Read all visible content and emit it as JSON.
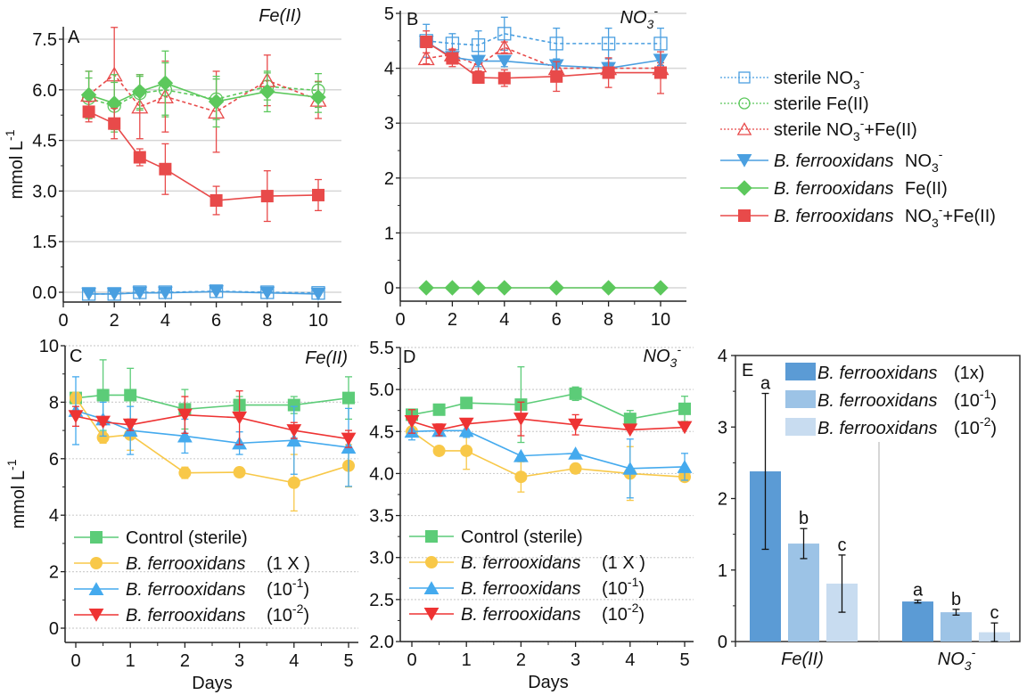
{
  "chart_data": [
    {
      "panel": "A",
      "type": "line",
      "title": "Fe(II)",
      "xlabel": "",
      "ylabel": "mmol L-1",
      "xlim": [
        0,
        11
      ],
      "ylim": [
        -0.3,
        8.0
      ],
      "xticks": [
        0,
        2,
        4,
        6,
        8,
        10
      ],
      "yticks": [
        "0.0",
        "1.5",
        "3.0",
        "4.5",
        "6.0",
        "7.5"
      ],
      "ytick_values": [
        0,
        1.5,
        3.0,
        4.5,
        6.0,
        7.5
      ],
      "grid": true,
      "x": [
        1,
        2,
        3,
        4,
        6,
        8,
        10
      ],
      "series": [
        {
          "name": "sterile NO3-",
          "style": "dotted-open-square",
          "color": "#4a9fe0",
          "values": [
            -0.05,
            -0.05,
            0.0,
            0.0,
            0.03,
            0.0,
            -0.02
          ],
          "err": [
            0.05,
            0.05,
            0.05,
            0.05,
            0.05,
            0.05,
            0.05
          ]
        },
        {
          "name": "sterile Fe(II)",
          "style": "dotted-open-circle",
          "color": "#5cc85c",
          "values": [
            5.75,
            5.52,
            5.9,
            6.0,
            5.72,
            6.1,
            5.98
          ],
          "err": [
            0.6,
            0.7,
            0.5,
            0.8,
            0.6,
            0.4,
            0.5
          ]
        },
        {
          "name": "sterile NO3-+Fe(II)",
          "style": "dotted-open-triangle",
          "color": "#e84a4a",
          "values": [
            5.85,
            6.45,
            5.5,
            5.8,
            5.35,
            6.28,
            5.7
          ],
          "err": [
            0.7,
            1.4,
            0.95,
            1.05,
            1.2,
            0.75,
            0.55
          ]
        },
        {
          "name": "B. ferrooxidans NO3-",
          "style": "solid-down-triangle",
          "color": "#4a9fe0",
          "values": [
            -0.05,
            -0.05,
            -0.02,
            -0.02,
            0.02,
            -0.02,
            -0.05
          ],
          "err": [
            0.05,
            0.05,
            0.05,
            0.05,
            0.05,
            0.05,
            0.05
          ]
        },
        {
          "name": "B. ferrooxidans Fe(II)",
          "style": "solid-diamond",
          "color": "#5cc85c",
          "values": [
            5.85,
            5.6,
            5.95,
            6.2,
            5.65,
            5.95,
            5.78
          ],
          "err": [
            0.7,
            0.85,
            0.5,
            0.95,
            0.75,
            0.6,
            0.45
          ]
        },
        {
          "name": "B. ferrooxidans NO3-+Fe(II)",
          "style": "solid-square",
          "color": "#e84a4a",
          "values": [
            5.35,
            5.0,
            4.0,
            3.65,
            2.72,
            2.85,
            2.88
          ],
          "err": [
            0.3,
            0.45,
            0.25,
            0.75,
            0.42,
            0.75,
            0.46
          ]
        }
      ]
    },
    {
      "panel": "B",
      "type": "line",
      "title": "NO3-",
      "xlabel": "",
      "ylabel": "",
      "xlim": [
        0,
        11
      ],
      "ylim": [
        -0.2,
        5.0
      ],
      "xticks": [
        0,
        2,
        4,
        6,
        8,
        10
      ],
      "yticks": [
        "0",
        "1",
        "2",
        "3",
        "4",
        "5"
      ],
      "ytick_values": [
        0,
        1,
        2,
        3,
        4,
        5
      ],
      "grid": true,
      "x": [
        1,
        2,
        3,
        4,
        6,
        8,
        10
      ],
      "series": [
        {
          "name": "sterile NO3-",
          "style": "dotted-open-square",
          "color": "#4a9fe0",
          "values": [
            4.5,
            4.45,
            4.42,
            4.63,
            4.45,
            4.45,
            4.45
          ],
          "err": [
            0.3,
            0.18,
            0.26,
            0.3,
            0.28,
            0.28,
            0.28
          ]
        },
        {
          "name": "sterile NO3-+Fe(II)",
          "style": "dotted-open-triangle",
          "color": "#e84a4a",
          "values": [
            4.18,
            4.25,
            4.05,
            4.38,
            4.0,
            4.0,
            4.0
          ],
          "err": [
            0.1,
            0.1,
            0.1,
            0.1,
            0.1,
            0.1,
            0.1
          ]
        },
        {
          "name": "B. ferrooxidans NO3-",
          "style": "solid-down-triangle",
          "color": "#4a9fe0",
          "values": [
            4.48,
            4.2,
            4.13,
            4.13,
            4.05,
            4.0,
            4.15
          ],
          "err": [
            0.1,
            0.1,
            0.1,
            0.1,
            0.1,
            0.1,
            0.1
          ]
        },
        {
          "name": "B. ferrooxidans Fe(II)",
          "style": "solid-diamond",
          "color": "#5cc85c",
          "values": [
            0,
            0,
            0,
            0,
            0,
            0,
            0
          ],
          "err": [
            0,
            0,
            0,
            0,
            0,
            0,
            0
          ]
        },
        {
          "name": "B. ferrooxidans NO3-+Fe(II)",
          "style": "solid-square",
          "color": "#e84a4a",
          "values": [
            4.48,
            4.18,
            3.83,
            3.82,
            3.85,
            3.92,
            3.92
          ],
          "err": [
            0.2,
            0.15,
            0.08,
            0.15,
            0.27,
            0.27,
            0.38
          ]
        }
      ]
    },
    {
      "panel": "legend-AB",
      "type": "legend",
      "entries": [
        {
          "species": "",
          "label": "sterile NO3-",
          "style": "dotted-open-square",
          "color": "#4a9fe0"
        },
        {
          "species": "",
          "label": "sterile Fe(II)",
          "style": "dotted-open-circle",
          "color": "#5cc85c"
        },
        {
          "species": "",
          "label": "sterile NO3-+Fe(II)",
          "style": "dotted-open-triangle",
          "color": "#e84a4a"
        },
        {
          "species": "B. ferrooxidans",
          "label": "NO3-",
          "style": "solid-down-triangle",
          "color": "#4a9fe0"
        },
        {
          "species": "B. ferrooxidans",
          "label": "Fe(II)",
          "style": "solid-diamond",
          "color": "#5cc85c"
        },
        {
          "species": "B. ferrooxidans",
          "label": "NO3-+Fe(II)",
          "style": "solid-square",
          "color": "#e84a4a"
        }
      ]
    },
    {
      "panel": "C",
      "type": "line",
      "title": "Fe(II)",
      "xlabel": "Days",
      "ylabel": "mmol L-1",
      "xlim": [
        -0.15,
        5.15
      ],
      "ylim": [
        -0.5,
        10
      ],
      "xticks": [
        0,
        1,
        2,
        3,
        4,
        5
      ],
      "yticks": [
        "0",
        "2",
        "4",
        "6",
        "8",
        "10"
      ],
      "ytick_values": [
        0,
        2,
        4,
        6,
        8,
        10
      ],
      "grid": true,
      "x": [
        0,
        0.5,
        1,
        2,
        3,
        4,
        5
      ],
      "series": [
        {
          "name": "Control (sterile)",
          "style": "solid-square",
          "color": "#5ccc78",
          "values": [
            8.15,
            8.25,
            8.25,
            7.75,
            7.9,
            7.9,
            8.15
          ],
          "err": [
            0.2,
            1.25,
            0.95,
            0.7,
            0.3,
            0.3,
            0.75
          ]
        },
        {
          "name": "B. ferrooxidans (1 X )",
          "style": "solid-circle",
          "color": "#f8c848",
          "values": [
            8.15,
            6.75,
            6.85,
            5.5,
            5.52,
            5.15,
            5.75
          ],
          "err": [
            0.2,
            0.2,
            0.55,
            0.2,
            0.1,
            1.0,
            0.75
          ]
        },
        {
          "name": "B. ferrooxidans (10-1)",
          "style": "solid-up-triangle",
          "color": "#44aaee",
          "values": [
            7.7,
            7.4,
            7.0,
            6.8,
            6.55,
            6.65,
            6.4
          ],
          "err": [
            1.2,
            0.6,
            0.85,
            0.6,
            0.4,
            1.2,
            1.38
          ]
        },
        {
          "name": "B. ferrooxidans (10-2)",
          "style": "solid-down-triangle",
          "color": "#ee3333",
          "values": [
            7.5,
            7.3,
            7.2,
            7.55,
            7.45,
            7.0,
            6.7
          ],
          "err": [
            0.35,
            0.1,
            0.2,
            0.65,
            0.95,
            0.28,
            0.3
          ]
        }
      ]
    },
    {
      "panel": "D",
      "type": "line",
      "title": "NO3-",
      "xlabel": "Days",
      "ylabel": "",
      "xlim": [
        -0.15,
        5.15
      ],
      "ylim": [
        2.0,
        5.5
      ],
      "xticks": [
        0,
        1,
        2,
        3,
        4,
        5
      ],
      "yticks": [
        "2.0",
        "2.5",
        "3.0",
        "3.5",
        "4.0",
        "4.5",
        "5.0",
        "5.5"
      ],
      "ytick_values": [
        2.0,
        2.5,
        3.0,
        3.5,
        4.0,
        4.5,
        5.0,
        5.5
      ],
      "grid": true,
      "x": [
        0,
        0.5,
        1,
        2,
        3,
        4,
        5
      ],
      "series": [
        {
          "name": "Control (sterile)",
          "style": "solid-square",
          "color": "#5ccc78",
          "values": [
            4.7,
            4.76,
            4.84,
            4.82,
            4.95,
            4.65,
            4.77
          ],
          "err": [
            0.05,
            0.03,
            0.03,
            0.45,
            0.08,
            0.1,
            0.15
          ]
        },
        {
          "name": "B. ferrooxidans (1 X )",
          "style": "solid-circle",
          "color": "#f8c848",
          "values": [
            4.5,
            4.27,
            4.27,
            3.96,
            4.06,
            4.0,
            3.96
          ],
          "err": [
            0.05,
            0.03,
            0.22,
            0.18,
            0.03,
            0.32,
            0.05
          ]
        },
        {
          "name": "B. ferrooxidans (10-1)",
          "style": "solid-up-triangle",
          "color": "#44aaee",
          "values": [
            4.5,
            4.51,
            4.51,
            4.21,
            4.24,
            4.06,
            4.08
          ],
          "err": [
            0.1,
            0.05,
            0.08,
            0.05,
            0.03,
            0.35,
            0.16
          ]
        },
        {
          "name": "B. ferrooxidans (10-2)",
          "style": "solid-down-triangle",
          "color": "#ee3333",
          "values": [
            4.62,
            4.52,
            4.59,
            4.65,
            4.58,
            4.52,
            4.55
          ],
          "err": [
            0.14,
            0.07,
            0.05,
            0.2,
            0.12,
            0.05,
            0.05
          ]
        }
      ]
    },
    {
      "panel": "E",
      "type": "bar",
      "title": "",
      "xlabel": "",
      "ylabel": "",
      "ylim": [
        0,
        4
      ],
      "yticks": [
        "0",
        "1",
        "2",
        "3",
        "4"
      ],
      "ytick_values": [
        0,
        1,
        2,
        3,
        4
      ],
      "categories": [
        "Fe(II)",
        "NO3-"
      ],
      "series": [
        {
          "name": "B. ferrooxidans (1x)",
          "color": "#5b9bd5",
          "values": [
            2.38,
            0.56
          ],
          "err": [
            1.09,
            0.02
          ],
          "letters": [
            "a",
            "a"
          ]
        },
        {
          "name": "B. ferrooxidans (10-1)",
          "color": "#9cc3e6",
          "values": [
            1.37,
            0.41
          ],
          "err": [
            0.21,
            0.04
          ],
          "letters": [
            "b",
            "b"
          ]
        },
        {
          "name": "B. ferrooxidans (10-2)",
          "color": "#c8dcf0",
          "values": [
            0.81,
            0.13
          ],
          "err": [
            0.4,
            0.13
          ],
          "letters": [
            "c",
            "c"
          ]
        }
      ]
    }
  ],
  "panel_letters": [
    "A",
    "B",
    "C",
    "D",
    "E"
  ]
}
